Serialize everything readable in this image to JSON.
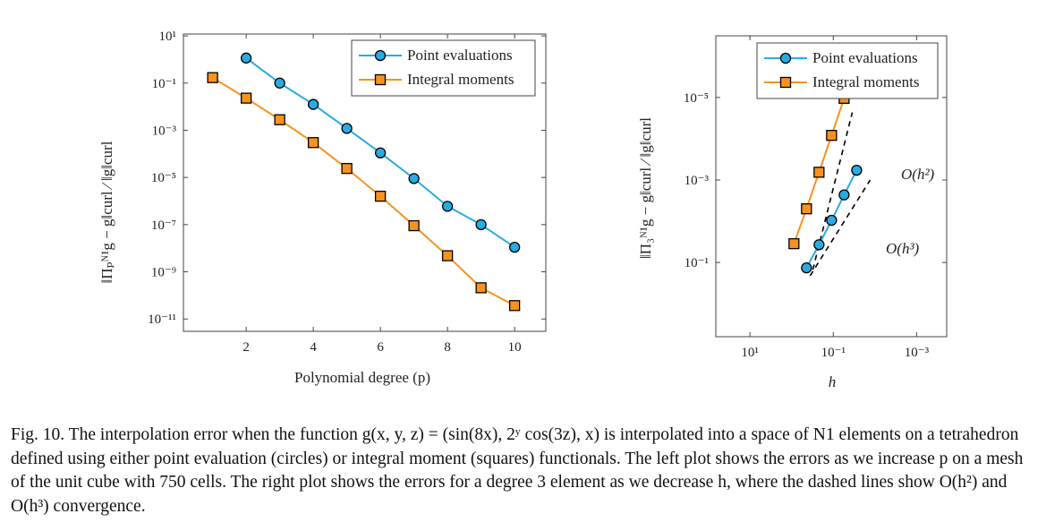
{
  "chart_data": [
    {
      "type": "line",
      "xlabel": "Polynomial degree (p)",
      "ylabel": "‖Πₚᴺ¹g − g‖curl ∕ ‖g‖curl",
      "log_y": true,
      "log_x": false,
      "legend": "upper right",
      "xlim": [
        0.13,
        10.93
      ],
      "ylim": [
        3e-12,
        12
      ],
      "xticks": [
        2,
        4,
        6,
        8,
        10
      ],
      "yticks": [
        {
          "value": 10,
          "label": "10¹"
        },
        {
          "value": 0.1,
          "label": "10⁻¹"
        },
        {
          "value": 0.001,
          "label": "10⁻³"
        },
        {
          "value": 1e-05,
          "label": "10⁻⁵"
        },
        {
          "value": 1e-07,
          "label": "10⁻⁷"
        },
        {
          "value": 1e-09,
          "label": "10⁻⁹"
        },
        {
          "value": 1e-11,
          "label": "10⁻¹¹"
        }
      ],
      "series": [
        {
          "name": "Point evaluations",
          "color": "#29abe2",
          "marker": "circle",
          "x": [
            2,
            3,
            4,
            5,
            6,
            7,
            8,
            9,
            10
          ],
          "values": [
            1.15,
            0.1,
            0.0125,
            0.0012,
            0.00011,
            9e-06,
            6e-07,
            1e-07,
            1.1e-08
          ]
        },
        {
          "name": "Integral moments",
          "color": "#f7931e",
          "marker": "square",
          "x": [
            1,
            2,
            3,
            4,
            5,
            6,
            7,
            8,
            9,
            10
          ],
          "values": [
            0.17,
            0.023,
            0.0028,
            0.0003,
            2.4e-05,
            1.6e-06,
            9e-08,
            4.8e-09,
            2.1e-10,
            3.7e-11
          ]
        }
      ]
    },
    {
      "type": "line",
      "xlabel": "h",
      "ylabel": "‖Π₃ᴺ¹g − g‖curl ∕ ‖g‖curl",
      "log_y": true,
      "log_x": true,
      "legend": "upper center",
      "xlim": [
        66,
        0.00019
      ],
      "ylim": [
        6.3,
        3.2e-07
      ],
      "xticks": [
        {
          "value": 10,
          "label": "10¹"
        },
        {
          "value": 0.1,
          "label": "10⁻¹"
        },
        {
          "value": 0.001,
          "label": "10⁻³"
        }
      ],
      "yticks": [
        {
          "value": 0.1,
          "label": "10⁻¹"
        },
        {
          "value": 0.001,
          "label": "10⁻³"
        },
        {
          "value": 1e-05,
          "label": "10⁻⁵"
        }
      ],
      "series": [
        {
          "name": "Point evaluations",
          "color": "#29abe2",
          "marker": "circle",
          "x": [
            0.44,
            0.22,
            0.11,
            0.055,
            0.0275
          ],
          "values": [
            0.135,
            0.037,
            0.0095,
            0.0023,
            0.00058
          ]
        },
        {
          "name": "Integral moments",
          "color": "#f7931e",
          "marker": "square",
          "x": [
            0.88,
            0.44,
            0.22,
            0.11,
            0.055,
            0.0275
          ],
          "values": [
            0.035,
            0.005,
            0.00065,
            8.3e-05,
            1.05e-05,
            1.3e-06
          ]
        }
      ],
      "reference_lines": [
        {
          "label": "O(h²)",
          "x": [
            0.36,
            0.013
          ],
          "y": [
            0.21,
            0.001
          ]
        },
        {
          "label": "O(h³)",
          "x": [
            0.31,
            0.035
          ],
          "y": [
            0.15,
            2.3e-05
          ]
        }
      ]
    }
  ],
  "caption": "Fig. 10. The interpolation error when the function g(x, y, z) = (sin(8x), 2ʸ cos(3z), x) is interpolated into a space of N1 elements on a tetrahedron defined using either point evaluation (circles) or integral moment (squares) functionals. The left plot shows the errors as we increase p on a mesh of the unit cube with 750 cells. The right plot shows the errors for a degree 3 element as we decrease h, where the dashed lines show O(h²) and O(h³) convergence."
}
